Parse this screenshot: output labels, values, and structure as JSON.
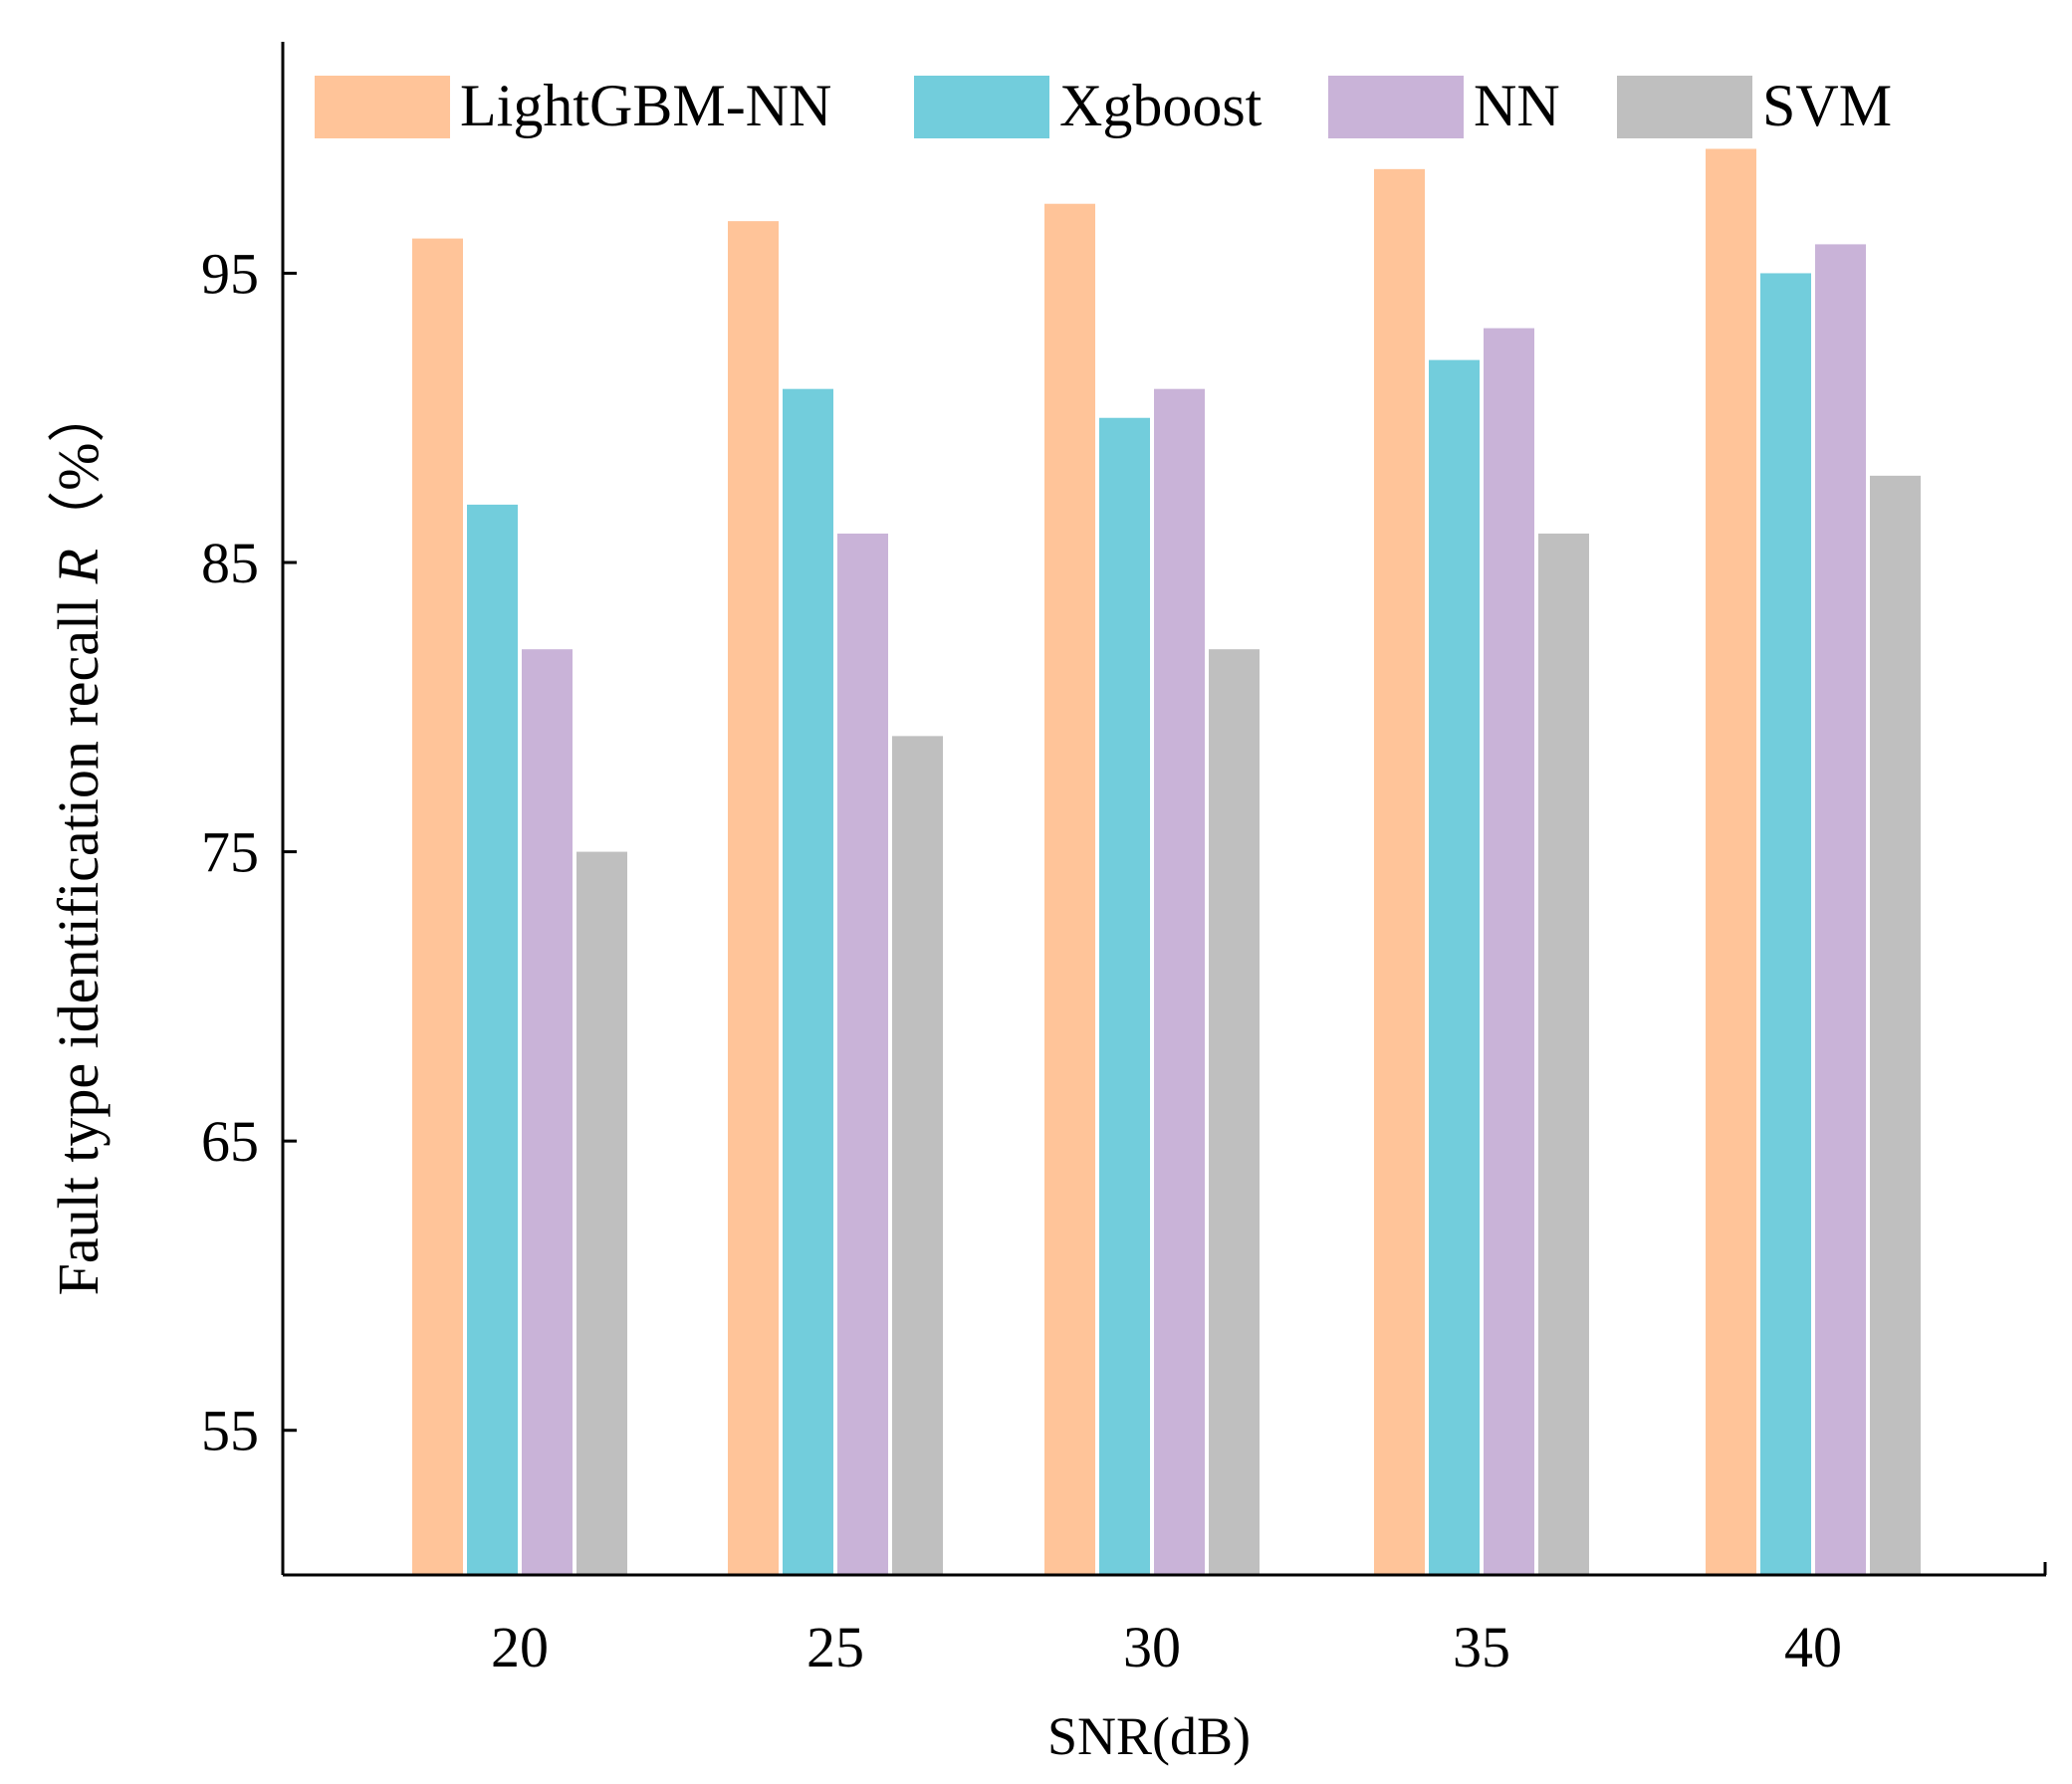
{
  "chart_data": {
    "type": "bar",
    "title": "",
    "xlabel": "SNR(dB)",
    "ylabel": "Fault type identification recall R（%）",
    "ylabel_parts": {
      "before": "Fault type identification recall ",
      "italic": "R",
      "after": "（%）"
    },
    "categories": [
      "20",
      "25",
      "30",
      "35",
      "40"
    ],
    "ylim": [
      50,
      103
    ],
    "yticks": [
      55,
      65,
      75,
      85,
      95
    ],
    "grid": false,
    "legend_position": "top",
    "series": [
      {
        "name": "LightGBM-NN",
        "color": "#FFC499",
        "values": [
          96.2,
          96.8,
          97.4,
          98.6,
          99.3
        ]
      },
      {
        "name": "Xgboost",
        "color": "#72CDDC",
        "values": [
          87.0,
          91.0,
          90.0,
          92.0,
          95.0
        ]
      },
      {
        "name": "NN",
        "color": "#C9B3D8",
        "values": [
          82.0,
          86.0,
          91.0,
          93.1,
          96.0
        ]
      },
      {
        "name": "SVM",
        "color": "#BFBFBF",
        "values": [
          75.0,
          79.0,
          82.0,
          86.0,
          88.0
        ]
      }
    ]
  }
}
